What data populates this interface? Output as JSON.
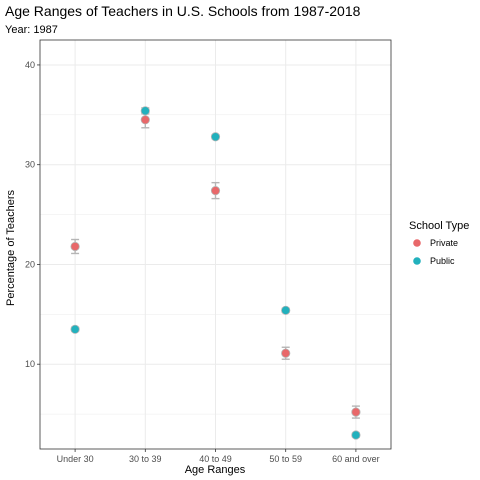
{
  "chart_data": {
    "type": "scatter",
    "title": "Age Ranges of Teachers in U.S. Schools from 1987-2018",
    "subtitle": "Year: 1987",
    "xlabel": "Age Ranges",
    "ylabel": "Percentage of Teachers",
    "categories": [
      "Under 30",
      "30 to 39",
      "40 to 49",
      "50 to 59",
      "60 and over"
    ],
    "yticks": [
      10,
      20,
      30,
      40
    ],
    "ylim": [
      1.5,
      42.5
    ],
    "grid": true,
    "legend": {
      "title": "School Type",
      "position": "right",
      "entries": [
        "Private",
        "Public"
      ]
    },
    "series": [
      {
        "name": "Private",
        "color": "#e8686a",
        "values": [
          21.8,
          34.5,
          27.4,
          11.1,
          5.2
        ],
        "err_low": [
          21.1,
          33.7,
          26.6,
          10.5,
          4.6
        ],
        "err_high": [
          22.5,
          35.2,
          28.2,
          11.7,
          5.8
        ]
      },
      {
        "name": "Public",
        "color": "#22b1bd",
        "values": [
          13.5,
          35.4,
          32.8,
          15.4,
          2.9
        ],
        "err_low": [
          13.3,
          35.1,
          32.6,
          15.2,
          2.7
        ],
        "err_high": [
          13.7,
          35.7,
          33.0,
          15.6,
          3.1
        ]
      }
    ],
    "colors": {
      "errorbar": "#b5b5b5",
      "grid": "#ebebeb",
      "frame": "#333333"
    }
  }
}
